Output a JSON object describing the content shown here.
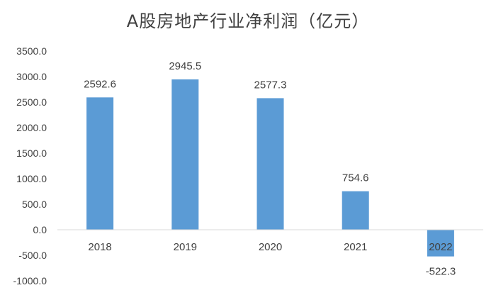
{
  "chart_data": {
    "type": "bar",
    "title": "A股房地产行业净利润（亿元）",
    "categories": [
      "2018",
      "2019",
      "2020",
      "2021",
      "2022"
    ],
    "values": [
      2592.6,
      2945.5,
      2577.3,
      754.6,
      -522.3
    ],
    "data_labels": [
      "2592.6",
      "2945.5",
      "2577.3",
      "754.6",
      "-522.3"
    ],
    "y_ticks": [
      "3500.0",
      "3000.0",
      "2500.0",
      "2000.0",
      "1500.0",
      "1000.0",
      "500.0",
      "0.0",
      "-500.0",
      "-1000.0"
    ],
    "ylim": [
      -1000,
      3500
    ],
    "xlabel": "",
    "ylabel": "",
    "grid": false,
    "legend": "none",
    "bar_color": "#5b9bd5"
  }
}
